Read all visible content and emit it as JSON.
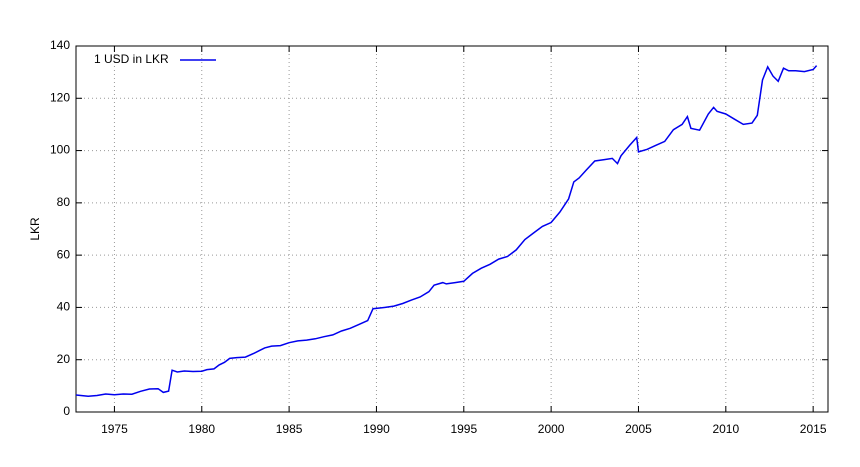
{
  "chart_data": {
    "type": "line",
    "y_label": "LKR",
    "series": [
      {
        "name": "1 USD in LKR",
        "color": "#0000ee",
        "x": [
          1972.8,
          1973.5,
          1974.0,
          1974.5,
          1975.0,
          1975.5,
          1976.0,
          1976.5,
          1977.0,
          1977.5,
          1977.8,
          1978.1,
          1978.3,
          1978.6,
          1979.0,
          1979.5,
          1980.0,
          1980.3,
          1980.7,
          1981.0,
          1981.3,
          1981.6,
          1982.0,
          1982.5,
          1983.0,
          1983.3,
          1983.6,
          1984.0,
          1984.5,
          1985.0,
          1985.5,
          1986.0,
          1986.5,
          1987.0,
          1987.5,
          1988.0,
          1988.5,
          1989.0,
          1989.5,
          1989.8,
          1990.5,
          1991.0,
          1991.5,
          1992.0,
          1992.5,
          1993.0,
          1993.3,
          1993.8,
          1994.0,
          1994.5,
          1995.0,
          1995.5,
          1996.0,
          1996.5,
          1997.0,
          1997.5,
          1998.0,
          1998.5,
          1999.0,
          1999.5,
          2000.0,
          2000.5,
          2001.0,
          2001.3,
          2001.6,
          2002.0,
          2002.5,
          2003.0,
          2003.5,
          2003.8,
          2004.0,
          2004.5,
          2004.9,
          2005.0,
          2005.5,
          2006.0,
          2006.5,
          2007.0,
          2007.5,
          2007.8,
          2008.0,
          2008.5,
          2009.0,
          2009.3,
          2009.5,
          2010.0,
          2010.5,
          2011.0,
          2011.5,
          2011.8,
          2012.1,
          2012.4,
          2012.7,
          2013.0,
          2013.3,
          2013.6,
          2014.0,
          2014.5,
          2015.0,
          2015.2
        ],
        "values": [
          6.5,
          6.0,
          6.3,
          6.9,
          6.6,
          6.9,
          6.8,
          7.9,
          8.8,
          8.9,
          7.5,
          8.0,
          16.0,
          15.3,
          15.7,
          15.5,
          15.6,
          16.2,
          16.5,
          18.0,
          19.0,
          20.5,
          20.8,
          21.0,
          22.5,
          23.5,
          24.5,
          25.2,
          25.4,
          26.5,
          27.2,
          27.5,
          28.0,
          28.8,
          29.5,
          31.0,
          32.0,
          33.5,
          35.0,
          39.5,
          40.0,
          40.5,
          41.5,
          42.8,
          44.0,
          46.0,
          48.5,
          49.5,
          49.0,
          49.5,
          50.0,
          53.0,
          55.0,
          56.5,
          58.5,
          59.5,
          62.0,
          66.0,
          68.5,
          71.0,
          72.5,
          76.5,
          81.5,
          88.0,
          89.5,
          92.5,
          96.0,
          96.5,
          97.0,
          95.0,
          98.0,
          102.0,
          105.0,
          99.5,
          100.5,
          102.0,
          103.5,
          108.0,
          110.0,
          113.0,
          108.5,
          107.8,
          114.0,
          116.5,
          115.0,
          114.0,
          112.0,
          110.0,
          110.5,
          113.5,
          127.0,
          132.0,
          128.5,
          126.5,
          131.5,
          130.5,
          130.5,
          130.2,
          131.0,
          132.5
        ]
      }
    ],
    "xlim": [
      1972.8,
      2015.85
    ],
    "xticks": [
      1975,
      1980,
      1985,
      1990,
      1995,
      2000,
      2005,
      2010,
      2015
    ],
    "ylim": [
      0,
      140
    ],
    "yticks": [
      0,
      20,
      40,
      60,
      80,
      100,
      120,
      140
    ],
    "grid": true,
    "legend": "top-left"
  }
}
